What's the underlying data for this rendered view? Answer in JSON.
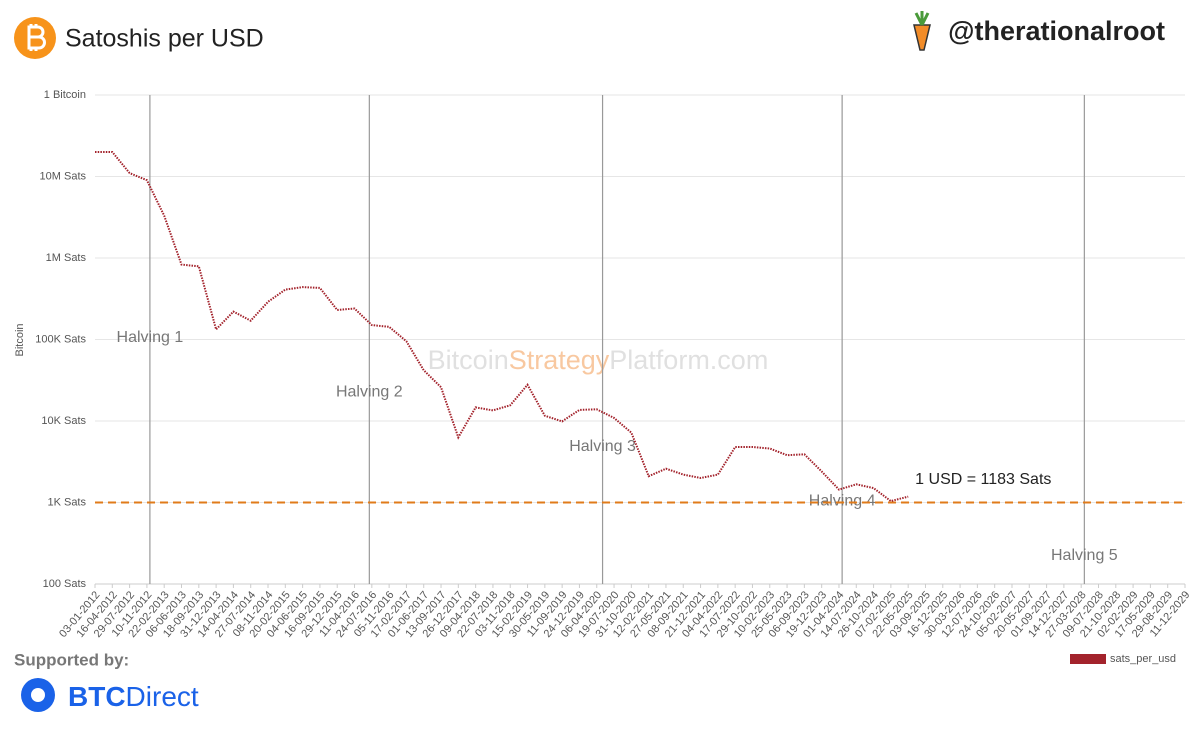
{
  "header": {
    "title": "Satoshis per USD",
    "handle": "@therationalroot"
  },
  "footer": {
    "supported_by": "Supported by:",
    "sponsor": [
      "BTC",
      "Direct"
    ]
  },
  "watermark": [
    "Bitcoin",
    "Strategy",
    "Platform.com"
  ],
  "chart_data": {
    "type": "line",
    "y_label": "Bitcoin",
    "log_scale": true,
    "grid": true,
    "legend_position": "bottom-right",
    "categories": [
      "03-01-2012",
      "16-04-2012",
      "29-07-2012",
      "10-11-2012",
      "22-02-2013",
      "06-06-2013",
      "18-09-2013",
      "31-12-2013",
      "14-04-2014",
      "27-07-2014",
      "08-11-2014",
      "20-02-2015",
      "04-06-2015",
      "16-09-2015",
      "29-12-2015",
      "11-04-2016",
      "24-07-2016",
      "05-11-2016",
      "17-02-2017",
      "01-06-2017",
      "13-09-2017",
      "26-12-2017",
      "09-04-2018",
      "22-07-2018",
      "03-11-2018",
      "15-02-2019",
      "30-05-2019",
      "11-09-2019",
      "24-12-2019",
      "06-04-2020",
      "19-07-2020",
      "31-10-2020",
      "12-02-2021",
      "27-05-2021",
      "08-09-2021",
      "21-12-2021",
      "04-04-2022",
      "17-07-2022",
      "29-10-2022",
      "10-02-2023",
      "25-05-2023",
      "06-09-2023",
      "19-12-2023",
      "01-04-2024",
      "14-07-2024",
      "26-10-2024",
      "07-02-2025",
      "22-05-2025",
      "03-09-2025",
      "16-12-2025",
      "30-03-2026",
      "12-07-2026",
      "24-10-2026",
      "05-02-2027",
      "20-05-2027",
      "01-09-2027",
      "14-12-2027",
      "27-03-2028",
      "09-07-2028",
      "21-10-2028",
      "02-02-2029",
      "17-05-2029",
      "29-08-2029",
      "11-12-2029"
    ],
    "series": [
      {
        "name": "sats_per_usd",
        "color": "#a3232c",
        "values": [
          20000000,
          20000000,
          11000000,
          9000000,
          3300000,
          830000,
          790000,
          133000,
          220000,
          170000,
          290000,
          410000,
          440000,
          430000,
          230000,
          240000,
          150000,
          143000,
          95000,
          42000,
          26000,
          6300,
          14700,
          13500,
          15600,
          27800,
          11600,
          9900,
          13700,
          13900,
          10900,
          7200,
          2100,
          2600,
          2200,
          2000,
          2200,
          4800,
          4800,
          4600,
          3800,
          3900,
          2400,
          1440,
          1670,
          1500,
          1040,
          1183,
          null,
          null,
          null,
          null,
          null,
          null,
          null,
          null,
          null,
          null,
          null,
          null,
          null,
          null,
          null,
          null
        ]
      }
    ],
    "ylim": [
      100,
      100000000
    ],
    "yticks": [
      {
        "value": 100,
        "label": "100 Sats"
      },
      {
        "value": 1000,
        "label": "1K Sats"
      },
      {
        "value": 10000,
        "label": "10K Sats"
      },
      {
        "value": 100000,
        "label": "100K Sats"
      },
      {
        "value": 1000000,
        "label": "1M Sats"
      },
      {
        "value": 10000000,
        "label": "10M Sats"
      },
      {
        "value": 100000000,
        "label": "1 Bitcoin"
      }
    ],
    "reference_line": {
      "value": 1000,
      "color": "#e07b1a"
    },
    "annotation": "1 USD = 1183 Sats",
    "halvings": [
      {
        "label": "Halving 1",
        "x": "28-11-2012"
      },
      {
        "label": "Halving 2",
        "x": "09-07-2016"
      },
      {
        "label": "Halving 3",
        "x": "11-05-2020"
      },
      {
        "label": "Halving 4",
        "x": "20-04-2024"
      },
      {
        "label": "Halving 5",
        "x": "15-04-2028"
      }
    ]
  }
}
